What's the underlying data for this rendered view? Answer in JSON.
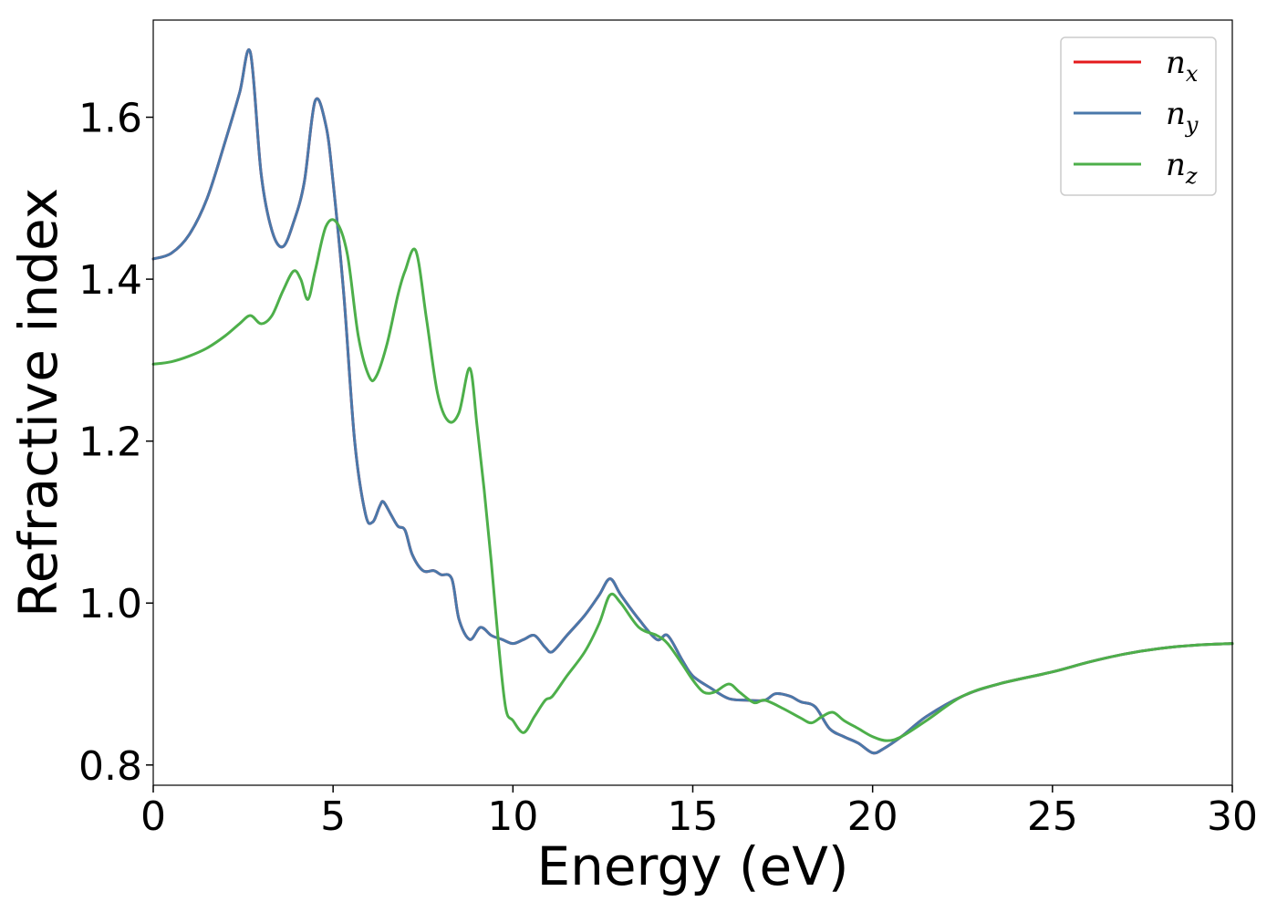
{
  "chart_data": {
    "type": "line",
    "xlabel": "Energy (eV)",
    "ylabel": "Refractive index",
    "xlim": [
      0,
      30
    ],
    "ylim": [
      0.775,
      1.72
    ],
    "xticks": [
      0,
      5,
      10,
      15,
      20,
      25,
      30
    ],
    "yticks": [
      0.8,
      1.0,
      1.2,
      1.4,
      1.6
    ],
    "xtick_labels": [
      "0",
      "5",
      "10",
      "15",
      "20",
      "25",
      "30"
    ],
    "ytick_labels": [
      "0.8",
      "1.0",
      "1.2",
      "1.4",
      "1.6"
    ],
    "grid": false,
    "legend_position": "top-right",
    "series": [
      {
        "name": "n_x",
        "color": "#e41a1c",
        "x": [
          0,
          0.5,
          1.0,
          1.5,
          2.0,
          2.4,
          2.7,
          3.0,
          3.3,
          3.6,
          3.9,
          4.2,
          4.5,
          4.8,
          5.0,
          5.3,
          5.6,
          5.9,
          6.1,
          6.3,
          6.4,
          6.6,
          6.8,
          7.0,
          7.2,
          7.5,
          7.8,
          8.0,
          8.3,
          8.5,
          8.8,
          9.1,
          9.4,
          9.7,
          10.0,
          10.3,
          10.6,
          10.9,
          11.1,
          11.5,
          12.0,
          12.4,
          12.7,
          13.0,
          13.5,
          14.0,
          14.3,
          14.7,
          15.0,
          15.5,
          16.0,
          16.5,
          17.0,
          17.3,
          17.7,
          18.0,
          18.4,
          18.8,
          19.2,
          19.6,
          20.0,
          20.3,
          20.8,
          21.5,
          22.5,
          23.5,
          25.0,
          26.0,
          27.0,
          28.0,
          29.0,
          30.0
        ],
        "y": [
          1.425,
          1.432,
          1.455,
          1.5,
          1.57,
          1.63,
          1.68,
          1.53,
          1.46,
          1.44,
          1.47,
          1.52,
          1.62,
          1.59,
          1.52,
          1.38,
          1.2,
          1.11,
          1.1,
          1.12,
          1.125,
          1.11,
          1.095,
          1.09,
          1.06,
          1.04,
          1.04,
          1.035,
          1.03,
          0.98,
          0.955,
          0.97,
          0.96,
          0.955,
          0.95,
          0.955,
          0.96,
          0.945,
          0.94,
          0.96,
          0.985,
          1.01,
          1.03,
          1.01,
          0.98,
          0.955,
          0.96,
          0.93,
          0.91,
          0.895,
          0.882,
          0.88,
          0.88,
          0.888,
          0.885,
          0.878,
          0.872,
          0.845,
          0.835,
          0.827,
          0.815,
          0.82,
          0.835,
          0.86,
          0.885,
          0.9,
          0.915,
          0.927,
          0.937,
          0.944,
          0.948,
          0.95
        ]
      },
      {
        "name": "n_y",
        "color": "#4a78aa",
        "x": [
          0,
          0.5,
          1.0,
          1.5,
          2.0,
          2.4,
          2.7,
          3.0,
          3.3,
          3.6,
          3.9,
          4.2,
          4.5,
          4.8,
          5.0,
          5.3,
          5.6,
          5.9,
          6.1,
          6.3,
          6.4,
          6.6,
          6.8,
          7.0,
          7.2,
          7.5,
          7.8,
          8.0,
          8.3,
          8.5,
          8.8,
          9.1,
          9.4,
          9.7,
          10.0,
          10.3,
          10.6,
          10.9,
          11.1,
          11.5,
          12.0,
          12.4,
          12.7,
          13.0,
          13.5,
          14.0,
          14.3,
          14.7,
          15.0,
          15.5,
          16.0,
          16.5,
          17.0,
          17.3,
          17.7,
          18.0,
          18.4,
          18.8,
          19.2,
          19.6,
          20.0,
          20.3,
          20.8,
          21.5,
          22.5,
          23.5,
          25.0,
          26.0,
          27.0,
          28.0,
          29.0,
          30.0
        ],
        "y": [
          1.425,
          1.432,
          1.455,
          1.5,
          1.57,
          1.63,
          1.68,
          1.53,
          1.46,
          1.44,
          1.47,
          1.52,
          1.62,
          1.59,
          1.52,
          1.38,
          1.2,
          1.11,
          1.1,
          1.12,
          1.125,
          1.11,
          1.095,
          1.09,
          1.06,
          1.04,
          1.04,
          1.035,
          1.03,
          0.98,
          0.955,
          0.97,
          0.96,
          0.955,
          0.95,
          0.955,
          0.96,
          0.945,
          0.94,
          0.96,
          0.985,
          1.01,
          1.03,
          1.01,
          0.98,
          0.955,
          0.96,
          0.93,
          0.91,
          0.895,
          0.882,
          0.88,
          0.88,
          0.888,
          0.885,
          0.878,
          0.872,
          0.845,
          0.835,
          0.827,
          0.815,
          0.82,
          0.835,
          0.86,
          0.885,
          0.9,
          0.915,
          0.927,
          0.937,
          0.944,
          0.948,
          0.95
        ]
      },
      {
        "name": "n_z",
        "color": "#4daf4a",
        "x": [
          0,
          0.5,
          1.0,
          1.5,
          2.0,
          2.4,
          2.7,
          3.0,
          3.3,
          3.6,
          3.9,
          4.1,
          4.3,
          4.5,
          4.8,
          5.1,
          5.4,
          5.7,
          6.0,
          6.2,
          6.5,
          6.8,
          7.0,
          7.3,
          7.6,
          7.9,
          8.2,
          8.5,
          8.8,
          9.0,
          9.2,
          9.4,
          9.6,
          9.8,
          10.0,
          10.3,
          10.6,
          10.9,
          11.1,
          11.5,
          12.0,
          12.4,
          12.7,
          13.0,
          13.5,
          14.0,
          14.3,
          14.7,
          15.0,
          15.3,
          15.6,
          16.0,
          16.3,
          16.7,
          17.0,
          17.5,
          18.0,
          18.3,
          18.6,
          18.9,
          19.2,
          19.6,
          20.0,
          20.4,
          20.8,
          21.5,
          22.5,
          23.5,
          25.0,
          26.0,
          27.0,
          28.0,
          29.0,
          30.0
        ],
        "y": [
          1.295,
          1.298,
          1.305,
          1.315,
          1.33,
          1.345,
          1.355,
          1.345,
          1.355,
          1.385,
          1.41,
          1.4,
          1.375,
          1.41,
          1.465,
          1.47,
          1.43,
          1.33,
          1.28,
          1.28,
          1.32,
          1.38,
          1.41,
          1.435,
          1.35,
          1.26,
          1.225,
          1.235,
          1.29,
          1.22,
          1.14,
          1.05,
          0.95,
          0.87,
          0.855,
          0.84,
          0.86,
          0.88,
          0.885,
          0.91,
          0.94,
          0.975,
          1.01,
          1.0,
          0.97,
          0.96,
          0.95,
          0.925,
          0.905,
          0.89,
          0.89,
          0.9,
          0.89,
          0.877,
          0.88,
          0.87,
          0.858,
          0.852,
          0.86,
          0.865,
          0.855,
          0.845,
          0.835,
          0.83,
          0.835,
          0.855,
          0.885,
          0.9,
          0.915,
          0.927,
          0.937,
          0.944,
          0.948,
          0.95
        ]
      }
    ]
  }
}
